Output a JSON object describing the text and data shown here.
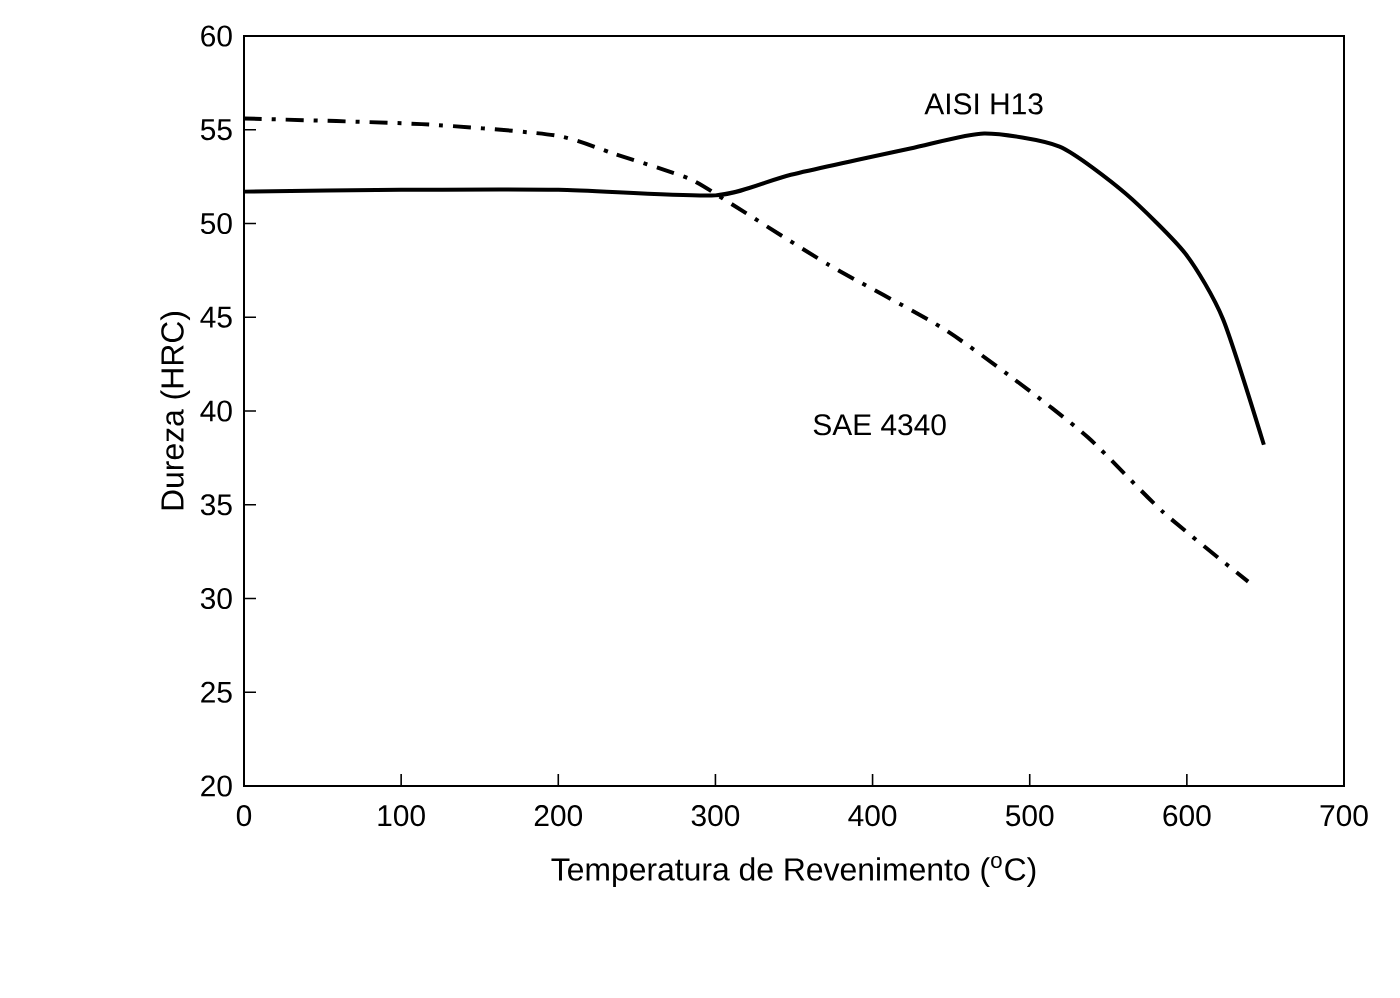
{
  "chart_data": {
    "type": "line",
    "xlabel": "Temperatura de Revenimento ($^{o}$C)",
    "ylabel": "Dureza (HRC)",
    "xlim": [
      0,
      700
    ],
    "ylim": [
      20,
      60
    ],
    "xticks": [
      0,
      100,
      200,
      300,
      400,
      500,
      600,
      700
    ],
    "yticks": [
      20,
      25,
      30,
      35,
      40,
      45,
      50,
      55,
      60
    ],
    "grid": false,
    "legend": false,
    "marker": "none",
    "series": [
      {
        "name": "AISI H13",
        "color": "#000000",
        "line_style": "solid",
        "x": [
          0,
          100,
          200,
          300,
          348,
          424,
          471,
          519,
          561,
          599,
          623,
          649
        ],
        "values": [
          51.7,
          51.8,
          51.8,
          51.5,
          52.6,
          54.0,
          54.8,
          54.1,
          51.6,
          48.4,
          44.9,
          38.2
        ]
      },
      {
        "name": "SAE 4340",
        "color": "#000000",
        "line_style": "dashdot",
        "x": [
          0,
          113,
          198,
          236,
          283,
          311,
          372,
          443,
          490,
          537,
          585,
          639
        ],
        "values": [
          55.6,
          55.3,
          54.7,
          53.7,
          52.4,
          51.0,
          47.8,
          44.5,
          41.7,
          38.6,
          34.6,
          30.9
        ]
      }
    ]
  }
}
